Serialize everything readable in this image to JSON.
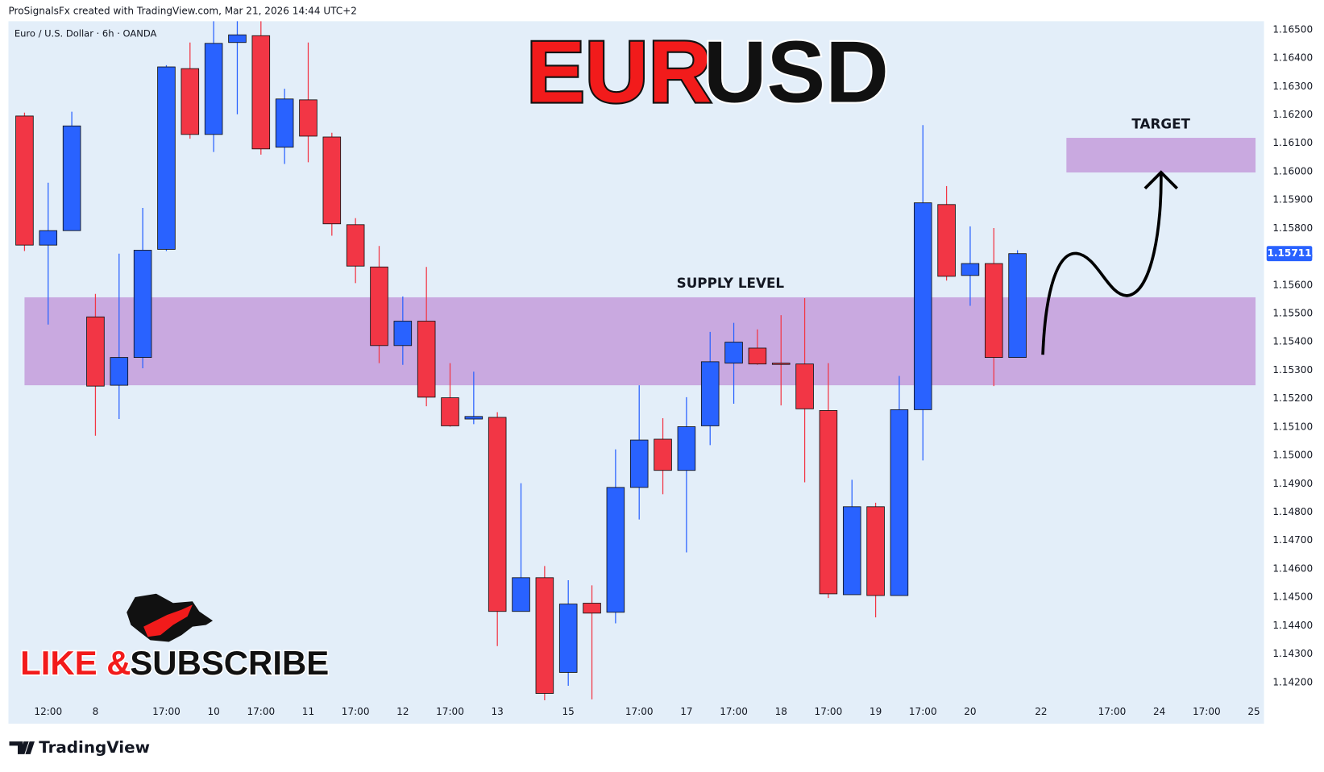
{
  "header": "ProSignalsFx created with TradingView.com, Mar 21, 2026 14:44 UTC+2",
  "footer": "TradingView",
  "chart_data": {
    "type": "candlestick",
    "symbol": "Euro / U.S. Dollar · 6h · OANDA",
    "title": [
      "EUR",
      "USD"
    ],
    "up_color": "#2962ff",
    "down_color": "#f23645",
    "open": [
      1.16196,
      1.15741,
      1.15792,
      1.15488,
      1.15247,
      1.15345,
      1.15726,
      1.16363,
      1.16131,
      1.16455,
      1.16479,
      1.16086,
      1.16253,
      1.16122,
      1.15813,
      1.15664,
      1.15387,
      1.15473,
      1.15203,
      1.15128,
      1.15134,
      1.1445,
      1.14569,
      1.14235,
      1.14479,
      1.14447,
      1.14887,
      1.15057,
      1.14947,
      1.15104,
      1.15325,
      1.15378,
      1.15325,
      1.15322,
      1.15158,
      1.14509,
      1.14819,
      1.14506,
      1.15161,
      1.15884,
      1.15634,
      1.15676,
      1.15345
    ],
    "high": [
      1.16208,
      1.15961,
      1.16211,
      1.15569,
      1.15711,
      1.15872,
      1.16375,
      1.16455,
      1.1653,
      1.1653,
      1.1653,
      1.16292,
      1.16455,
      1.16137,
      1.15836,
      1.15738,
      1.1556,
      1.15664,
      1.15325,
      1.15295,
      1.15152,
      1.14902,
      1.1461,
      1.1456,
      1.14542,
      1.15021,
      1.15247,
      1.15131,
      1.15205,
      1.15435,
      1.15467,
      1.15444,
      1.15494,
      1.15554,
      1.15325,
      1.14914,
      1.14833,
      1.1528,
      1.16164,
      1.15949,
      1.15807,
      1.15801,
      1.15723
    ],
    "low": [
      1.1572,
      1.15461,
      1.15792,
      1.15069,
      1.15128,
      1.15307,
      1.1572,
      1.16116,
      1.16069,
      1.16202,
      1.1606,
      1.16027,
      1.16033,
      1.15774,
      1.15607,
      1.15325,
      1.15319,
      1.15173,
      1.15101,
      1.1511,
      1.14328,
      1.1445,
      1.14137,
      1.14188,
      1.1414,
      1.14408,
      1.14774,
      1.14863,
      1.14658,
      1.15036,
      1.15182,
      1.15319,
      1.15176,
      1.14905,
      1.14497,
      1.14509,
      1.14429,
      1.14506,
      1.14982,
      1.15616,
      1.15527,
      1.15244,
      1.15345
    ],
    "close": [
      1.15741,
      1.15792,
      1.16161,
      1.15244,
      1.15345,
      1.15723,
      1.16369,
      1.16131,
      1.16452,
      1.16482,
      1.1608,
      1.16256,
      1.16125,
      1.15816,
      1.15667,
      1.15387,
      1.15473,
      1.15205,
      1.15104,
      1.15137,
      1.1445,
      1.14569,
      1.14161,
      1.14476,
      1.14444,
      1.14887,
      1.15054,
      1.14947,
      1.15101,
      1.1533,
      1.15399,
      1.15322,
      1.15322,
      1.15164,
      1.14512,
      1.14819,
      1.14506,
      1.15161,
      1.1589,
      1.15631,
      1.15676,
      1.15345,
      1.15711
    ],
    "ylim": [
      1.1413,
      1.1653
    ],
    "yticks": [
      {
        "value": 1.142,
        "label": "1.14200"
      },
      {
        "value": 1.143,
        "label": "1.14300"
      },
      {
        "value": 1.144,
        "label": "1.14400"
      },
      {
        "value": 1.145,
        "label": "1.14500"
      },
      {
        "value": 1.146,
        "label": "1.14600"
      },
      {
        "value": 1.147,
        "label": "1.14700"
      },
      {
        "value": 1.148,
        "label": "1.14800"
      },
      {
        "value": 1.149,
        "label": "1.14900"
      },
      {
        "value": 1.15,
        "label": "1.15000"
      },
      {
        "value": 1.151,
        "label": "1.15100"
      },
      {
        "value": 1.152,
        "label": "1.15200"
      },
      {
        "value": 1.153,
        "label": "1.15300"
      },
      {
        "value": 1.154,
        "label": "1.15400"
      },
      {
        "value": 1.155,
        "label": "1.15500"
      },
      {
        "value": 1.156,
        "label": "1.15600"
      },
      {
        "value": 1.157,
        "label": "1.15700"
      },
      {
        "value": 1.158,
        "label": "1.15800"
      },
      {
        "value": 1.159,
        "label": "1.15900"
      },
      {
        "value": 1.16,
        "label": "1.16000"
      },
      {
        "value": 1.161,
        "label": "1.16100"
      },
      {
        "value": 1.162,
        "label": "1.16200"
      },
      {
        "value": 1.163,
        "label": "1.16300"
      },
      {
        "value": 1.164,
        "label": "1.16400"
      },
      {
        "value": 1.165,
        "label": "1.16500"
      }
    ],
    "xlim": [
      -0.68,
      52.43
    ],
    "xticks": [
      {
        "value": 1,
        "label": "12:00"
      },
      {
        "value": 3,
        "label": "8"
      },
      {
        "value": 6,
        "label": "17:00"
      },
      {
        "value": 8,
        "label": "10"
      },
      {
        "value": 10,
        "label": "17:00"
      },
      {
        "value": 12,
        "label": "11"
      },
      {
        "value": 14,
        "label": "17:00"
      },
      {
        "value": 16,
        "label": "12"
      },
      {
        "value": 18,
        "label": "17:00"
      },
      {
        "value": 20,
        "label": "13"
      },
      {
        "value": 23,
        "label": "15"
      },
      {
        "value": 26,
        "label": "17:00"
      },
      {
        "value": 28,
        "label": "17"
      },
      {
        "value": 30,
        "label": "17:00"
      },
      {
        "value": 32,
        "label": "18"
      },
      {
        "value": 34,
        "label": "17:00"
      },
      {
        "value": 36,
        "label": "19"
      },
      {
        "value": 38,
        "label": "17:00"
      },
      {
        "value": 40,
        "label": "20"
      },
      {
        "value": 43,
        "label": "22"
      },
      {
        "value": 46,
        "label": "17:00"
      },
      {
        "value": 48,
        "label": "24"
      },
      {
        "value": 50,
        "label": "17:00"
      },
      {
        "value": 52,
        "label": "25"
      }
    ],
    "grid": false,
    "zones": [
      {
        "label": "SUPPLY LEVEL",
        "top": 1.15557,
        "bottom": 1.15247,
        "color": "#c9a9e0"
      },
      {
        "label": "TARGET",
        "top": 1.16119,
        "bottom": 1.15997,
        "color": "#c9a9e0"
      }
    ],
    "cta": [
      "LIKE &",
      "SUBSCRIBE"
    ]
  }
}
